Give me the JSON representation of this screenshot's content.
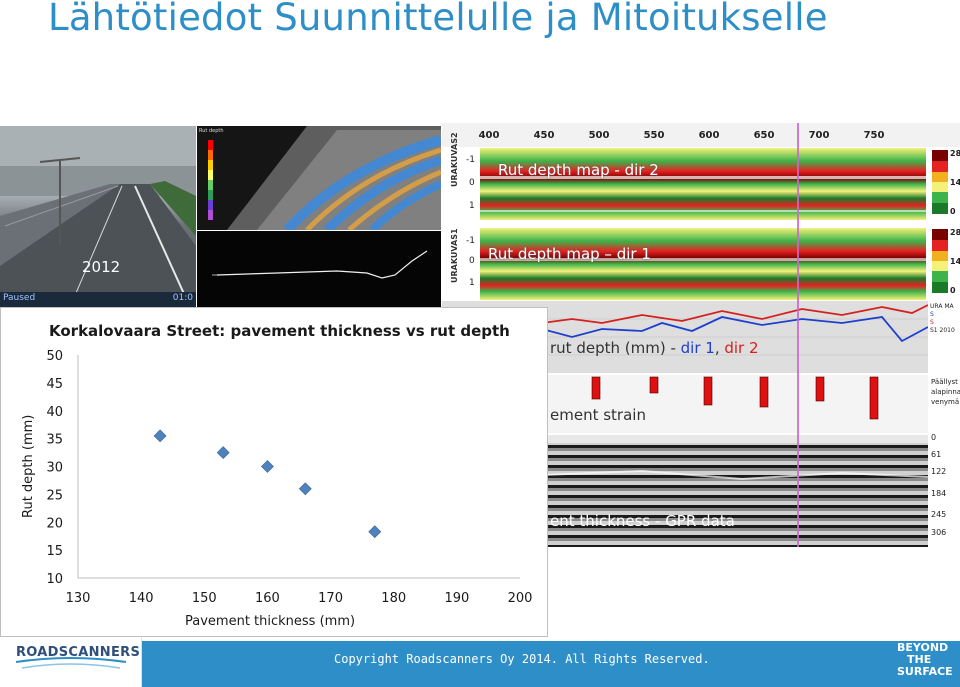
{
  "slide": {
    "title": "Lähtötiedot Suunnittelulle ja Mitoitukselle"
  },
  "photo": {
    "year": "2012",
    "status_left": "Paused",
    "status_right": "01:0"
  },
  "laser_scan": {
    "legend_label": "Rut depth"
  },
  "rut_maps": {
    "distance_ticks": [
      "400",
      "450",
      "500",
      "550",
      "600",
      "650",
      "700",
      "750"
    ],
    "side_label_dir2": "URAKUVAS2",
    "side_label_dir1": "URAKUVAS1",
    "lane_ticks_dir2": [
      "-1",
      "0",
      "1"
    ],
    "lane_ticks_dir1": [
      "-1",
      "0",
      "1"
    ],
    "map_dir2_title": "Rut depth map - dir 2",
    "map_dir1_title": "Rut depth map – dir 1",
    "scale_labels": [
      "28",
      "14",
      "0",
      "28",
      "14",
      "0"
    ],
    "scale_colors": [
      "#7a0000",
      "#e52222",
      "#f0b020",
      "#f5f07a",
      "#3cb44a",
      "#1a7a2a"
    ],
    "profile_text_black": "rut depth  (mm) - ",
    "profile_text_dir1": "dir 1",
    "profile_text_sep": ", ",
    "profile_text_dir2": "dir 2",
    "profile_colors": {
      "dir1": "#1f3fcf",
      "dir2": "#d62020"
    },
    "legend_lines": [
      "URA MA",
      "S",
      "S",
      "S1 2010"
    ],
    "strain_text": "ement strain",
    "strain_legend": [
      "Päällyst",
      "alapinna",
      "venymä"
    ],
    "gpr_text": "ent thickness - GPR data",
    "gpr_depths": [
      "0",
      "61",
      "122",
      "184",
      "245",
      "306"
    ]
  },
  "chart": {
    "title": "Korkalovaara Street: pavement thickness vs rut depth",
    "xlabel": "Pavement thickness (mm)",
    "ylabel": "Rut depth (mm)"
  },
  "chart_data": {
    "type": "scatter",
    "title": "Korkalovaara Street: pavement thickness vs rut depth",
    "xlabel": "Pavement thickness (mm)",
    "ylabel": "Rut depth (mm)",
    "xlim": [
      130,
      200
    ],
    "ylim": [
      10,
      50
    ],
    "x_ticks": [
      "130",
      "140",
      "150",
      "160",
      "170",
      "180",
      "190",
      "200"
    ],
    "y_ticks": [
      "50",
      "45",
      "40",
      "35",
      "30",
      "25",
      "20",
      "15",
      "10"
    ],
    "grid": false,
    "marker_color": "#4f81bd",
    "points": [
      {
        "x": 143,
        "y": 35.5
      },
      {
        "x": 153,
        "y": 32.5
      },
      {
        "x": 160,
        "y": 30
      },
      {
        "x": 166,
        "y": 26
      },
      {
        "x": 177,
        "y": 18.3
      }
    ]
  },
  "footer": {
    "company_logo": "ROADSCANNERS",
    "copyright": "Copyright Roadscanners Oy 2014. All Rights Reserved.",
    "tagline_1": "BEYOND",
    "tagline_2": "THE",
    "tagline_3": "SURFACE",
    "bar_color": "#2e8fc8"
  }
}
